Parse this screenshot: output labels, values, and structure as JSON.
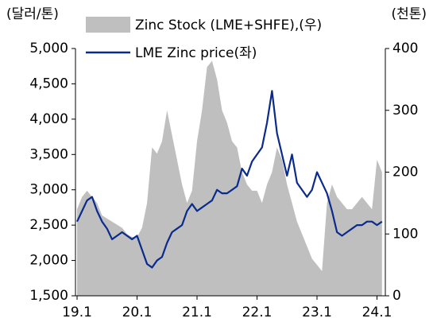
{
  "chart_data": {
    "type": "line",
    "ylabel": "(달러/톤)",
    "y2label": "(천톤)",
    "categories": [
      "19.1",
      null,
      null,
      null,
      null,
      null,
      null,
      null,
      null,
      null,
      null,
      null,
      "20.1",
      null,
      null,
      null,
      null,
      null,
      null,
      null,
      null,
      null,
      null,
      null,
      "21.1",
      null,
      null,
      null,
      null,
      null,
      null,
      null,
      null,
      null,
      null,
      null,
      "22.1",
      null,
      null,
      null,
      null,
      null,
      null,
      null,
      null,
      null,
      null,
      null,
      "23.1",
      null,
      null,
      null,
      null,
      null,
      null,
      null,
      null,
      null,
      null,
      null,
      "24.1",
      null
    ],
    "series": [
      {
        "name": "Zinc Stock (LME+SHFE),(우)",
        "type": "area",
        "axis": "y2",
        "color": "#bfbfbf",
        "values": [
          140,
          160,
          170,
          160,
          150,
          130,
          125,
          120,
          115,
          110,
          100,
          95,
          95,
          110,
          150,
          240,
          230,
          250,
          300,
          260,
          220,
          180,
          150,
          170,
          250,
          300,
          370,
          380,
          350,
          300,
          280,
          250,
          240,
          200,
          180,
          170,
          170,
          150,
          180,
          200,
          240,
          220,
          180,
          150,
          120,
          100,
          80,
          60,
          50,
          40,
          150,
          180,
          160,
          150,
          140,
          140,
          150,
          160,
          150,
          140,
          220,
          200
        ]
      },
      {
        "name": "LME Zinc price(좌)",
        "type": "line",
        "axis": "y",
        "color": "#0a2a8c",
        "values": [
          2550,
          2700,
          2850,
          2900,
          2700,
          2550,
          2450,
          2300,
          2350,
          2400,
          2350,
          2300,
          2350,
          2150,
          1950,
          1900,
          2000,
          2050,
          2250,
          2400,
          2450,
          2500,
          2700,
          2800,
          2700,
          2750,
          2800,
          2850,
          3000,
          2950,
          2950,
          3000,
          3050,
          3300,
          3200,
          3400,
          3500,
          3600,
          3950,
          4400,
          3800,
          3500,
          3200,
          3500,
          3100,
          3000,
          2900,
          3000,
          3250,
          3100,
          2950,
          2700,
          2400,
          2350,
          2400,
          2450,
          2500,
          2500,
          2550,
          2550,
          2500,
          2550
        ]
      }
    ],
    "ylim": [
      1500,
      5000
    ],
    "yticks": [
      {
        "value": 1500,
        "label": "1,500"
      },
      {
        "value": 2000,
        "label": "2,000"
      },
      {
        "value": 2500,
        "label": "2,500"
      },
      {
        "value": 3000,
        "label": "3,000"
      },
      {
        "value": 3500,
        "label": "3,500"
      },
      {
        "value": 4000,
        "label": "4,000"
      },
      {
        "value": 4500,
        "label": "4,500"
      },
      {
        "value": 5000,
        "label": "5,000"
      }
    ],
    "y2lim": [
      0,
      400
    ],
    "y2ticks": [
      0,
      100,
      200,
      300,
      400
    ]
  }
}
